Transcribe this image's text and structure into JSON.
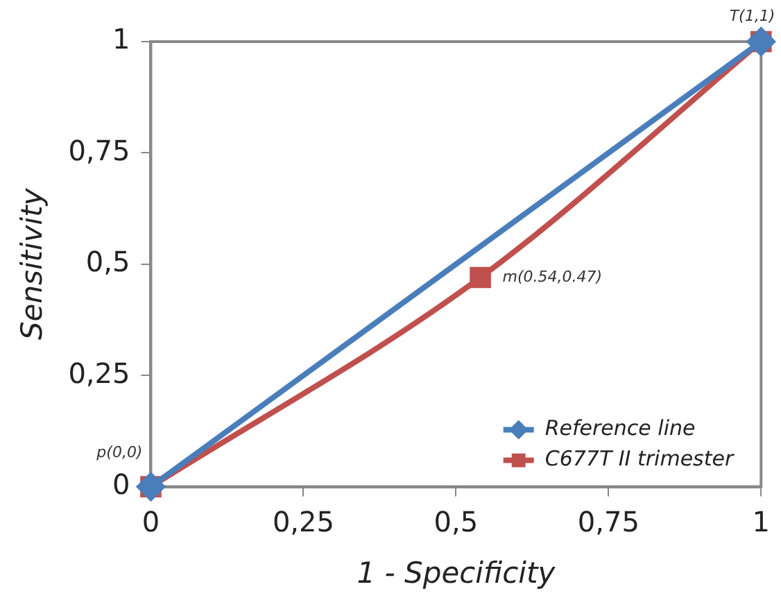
{
  "chart_data": {
    "type": "line",
    "xlabel": "1 - Specificity",
    "ylabel": "Sensitivity",
    "xlim": [
      0,
      1
    ],
    "ylim": [
      0,
      1
    ],
    "xticks": [
      0,
      {
        "value": 0.25,
        "label": "0,25"
      },
      {
        "value": 0.5,
        "label": "0,5"
      },
      {
        "value": 0.75,
        "label": "0,75"
      },
      1
    ],
    "yticks": [
      0,
      {
        "value": 0.25,
        "label": "0,25"
      },
      {
        "value": 0.5,
        "label": "0,5"
      },
      {
        "value": 0.75,
        "label": "0,75"
      },
      1
    ],
    "grid": false,
    "legend": "bottom right",
    "line_style": "solid",
    "series": [
      {
        "name": "Reference line",
        "color": "#4a7ebb",
        "marker": "diamond",
        "x": [
          0,
          1
        ],
        "values": [
          0,
          1
        ]
      },
      {
        "name": "C677T II trimester",
        "color": "#c0504d",
        "marker": "square",
        "x": [
          0,
          0.54,
          1
        ],
        "values": [
          0,
          0.47,
          1
        ]
      }
    ],
    "annotations": [
      {
        "text": "p(0,0)",
        "x": 0,
        "y": 0
      },
      {
        "text": "m(0.54,0.47)",
        "x": 0.54,
        "y": 0.47
      },
      {
        "text": "T(1,1)",
        "x": 1,
        "y": 1
      }
    ]
  }
}
